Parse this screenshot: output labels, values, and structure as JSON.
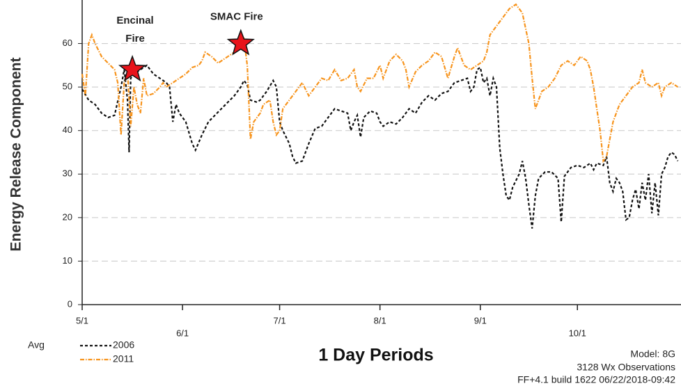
{
  "chart_data": {
    "type": "line",
    "y_label": "Energy Release Component",
    "x_label": "1 Day Periods",
    "legend_title": "Avg",
    "info": [
      "Model: 8G",
      "3128 Wx Observations",
      "FF+4.1 build 1622 06/22/2018-09:42"
    ],
    "xlim": [
      0,
      185
    ],
    "ylim": [
      0,
      70
    ],
    "xticks": [
      {
        "value": 0,
        "label": "5/1"
      },
      {
        "value": 31,
        "label": "6/1"
      },
      {
        "value": 61,
        "label": "7/1"
      },
      {
        "value": 92,
        "label": "8/1"
      },
      {
        "value": 123,
        "label": "9/1"
      },
      {
        "value": 153,
        "label": "10/1"
      }
    ],
    "yticks": [
      0,
      10,
      20,
      30,
      40,
      50,
      60
    ],
    "grid": true,
    "annotations": [
      {
        "lines": [
          "Encinal",
          "Fire"
        ],
        "x": 15.5,
        "y": 54
      },
      {
        "lines": [
          "SMAC Fire"
        ],
        "x": 49,
        "y": 60
      }
    ],
    "series": [
      {
        "name": "2006",
        "color": "#111111",
        "dash": "4,3",
        "x": [
          0,
          2,
          4,
          6,
          8,
          10,
          12,
          13,
          14,
          14.5,
          15,
          16,
          18,
          20,
          22,
          24,
          26,
          27,
          28,
          29,
          30,
          32,
          34,
          35,
          37,
          39,
          41,
          43,
          45,
          47,
          49,
          50,
          51,
          52,
          54,
          55,
          57,
          59,
          60,
          61,
          62,
          63,
          64,
          65,
          66,
          68,
          70,
          72,
          74,
          76,
          78,
          80,
          82,
          83,
          84,
          85,
          86,
          87,
          89,
          91,
          92,
          93,
          95,
          97,
          99,
          101,
          103,
          105,
          107,
          109,
          111,
          113,
          115,
          117,
          119,
          120,
          121,
          122,
          123,
          124,
          125,
          126,
          127,
          128,
          129,
          130,
          131,
          132,
          133,
          135,
          136,
          137,
          138,
          139,
          140,
          141,
          143,
          145,
          147,
          148,
          149,
          151,
          153,
          155,
          157,
          158,
          159,
          161,
          162,
          163,
          164,
          165,
          166,
          167,
          168,
          169,
          170,
          171,
          172,
          173,
          174,
          175,
          176,
          177,
          178,
          179,
          180,
          181,
          182,
          183,
          184
        ],
        "values": [
          49.5,
          47,
          46,
          44,
          43,
          43.5,
          50,
          54,
          47,
          35,
          52,
          53,
          54,
          55,
          53,
          52,
          51,
          50,
          42,
          46,
          44,
          42,
          37,
          35.5,
          39,
          42,
          43.5,
          45,
          46.5,
          48,
          50,
          51.5,
          50.5,
          47,
          46.5,
          47,
          49,
          51.5,
          50,
          42,
          40,
          38.5,
          37,
          34,
          32.5,
          33,
          37,
          40.5,
          41,
          43,
          45,
          44.5,
          44,
          40,
          42,
          43.5,
          38.5,
          43,
          44.5,
          44,
          42,
          41,
          42,
          41.5,
          43,
          45,
          44,
          46.5,
          48,
          47,
          48.5,
          49,
          51,
          51.5,
          52,
          49,
          50,
          54,
          54.5,
          51,
          52,
          48,
          52,
          50,
          36,
          30,
          25,
          24,
          27,
          30,
          33,
          29,
          23,
          17.5,
          25,
          29,
          30.5,
          30.5,
          29,
          19,
          29.5,
          31.5,
          32,
          31.5,
          32.5,
          31,
          32.5,
          32,
          34,
          28,
          26,
          29,
          28,
          26,
          19.5,
          20,
          24,
          26.5,
          22,
          28,
          24,
          30,
          21,
          28,
          20.5,
          30,
          31.5,
          34,
          35,
          34.5,
          33
        ]
      },
      {
        "name": "2011",
        "color": "#f7941d",
        "dash": "6,2,1.5,2",
        "x": [
          0,
          1,
          2,
          3,
          4,
          6,
          8,
          10,
          11,
          12,
          13,
          14,
          15,
          16,
          17,
          18,
          19,
          20,
          22,
          24,
          25,
          26,
          28,
          30,
          32,
          34,
          36,
          37,
          38,
          40,
          42,
          44,
          46,
          47,
          48,
          49,
          50,
          51,
          52,
          53,
          55,
          56,
          58,
          59,
          60,
          61,
          62,
          64,
          66,
          68,
          70,
          72,
          74,
          76,
          78,
          80,
          82,
          84,
          85,
          86,
          88,
          90,
          92,
          93,
          95,
          97,
          99,
          100,
          101,
          103,
          105,
          107,
          109,
          111,
          113,
          115,
          116,
          118,
          120,
          122,
          124,
          125,
          126,
          128,
          130,
          132,
          134,
          136,
          138,
          139,
          140,
          142,
          144,
          146,
          148,
          150,
          152,
          154,
          156,
          157,
          158,
          159,
          160,
          161,
          162,
          163,
          164,
          165,
          166,
          168,
          170,
          172,
          173,
          174,
          176,
          178,
          179,
          180,
          182,
          184
        ],
        "values": [
          53,
          48,
          60,
          62,
          60,
          57,
          55.5,
          54,
          51,
          39,
          51,
          53.5,
          41,
          50,
          46,
          44,
          52,
          48,
          48.5,
          50,
          51,
          50,
          51,
          52,
          53,
          54.5,
          55,
          56,
          58,
          57,
          55.5,
          56.5,
          57.5,
          58,
          59,
          60,
          61,
          55,
          38,
          42,
          44,
          46,
          47,
          42,
          39,
          40,
          45,
          47,
          49,
          51,
          48,
          50,
          52,
          51.5,
          54,
          51.5,
          52,
          54,
          50,
          49,
          52,
          52,
          55,
          52,
          56,
          57.5,
          56,
          54,
          50,
          53.5,
          55,
          56,
          58,
          57,
          52,
          57,
          59,
          55,
          54,
          55,
          56,
          58,
          62,
          64,
          66,
          68,
          69,
          67,
          60,
          52,
          45,
          49,
          50,
          52,
          55,
          56,
          55,
          57,
          56,
          54,
          50,
          45,
          40,
          33,
          34,
          38,
          42,
          44,
          46,
          48,
          50,
          51,
          54,
          51,
          50,
          51,
          48,
          50,
          51,
          50
        ]
      }
    ]
  }
}
